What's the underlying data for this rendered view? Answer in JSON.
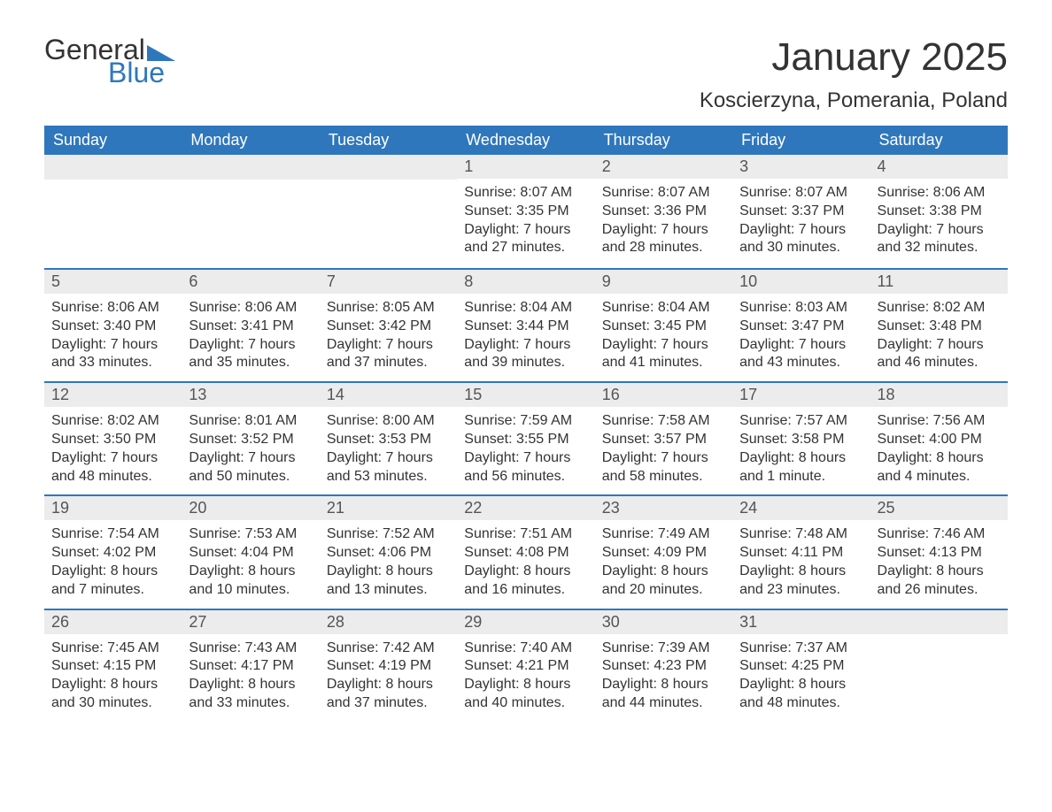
{
  "logo": {
    "word1": "General",
    "word2": "Blue"
  },
  "title": "January 2025",
  "location": "Koscierzyna, Pomerania, Poland",
  "colors": {
    "brand_blue": "#2f77bc",
    "header_bg": "#2f77bc",
    "header_text": "#ffffff",
    "daynum_bg": "#ececec",
    "text": "#333333",
    "page_bg": "#ffffff"
  },
  "layout": {
    "columns": 7,
    "rows": 5,
    "title_fontsize": 44,
    "location_fontsize": 24,
    "dayhead_fontsize": 18,
    "body_fontsize": 16,
    "first_day_column": 3,
    "last_day": 31
  },
  "day_names": [
    "Sunday",
    "Monday",
    "Tuesday",
    "Wednesday",
    "Thursday",
    "Friday",
    "Saturday"
  ],
  "days": [
    {
      "n": 1,
      "sunrise": "8:07 AM",
      "sunset": "3:35 PM",
      "daylight": "7 hours and 27 minutes."
    },
    {
      "n": 2,
      "sunrise": "8:07 AM",
      "sunset": "3:36 PM",
      "daylight": "7 hours and 28 minutes."
    },
    {
      "n": 3,
      "sunrise": "8:07 AM",
      "sunset": "3:37 PM",
      "daylight": "7 hours and 30 minutes."
    },
    {
      "n": 4,
      "sunrise": "8:06 AM",
      "sunset": "3:38 PM",
      "daylight": "7 hours and 32 minutes."
    },
    {
      "n": 5,
      "sunrise": "8:06 AM",
      "sunset": "3:40 PM",
      "daylight": "7 hours and 33 minutes."
    },
    {
      "n": 6,
      "sunrise": "8:06 AM",
      "sunset": "3:41 PM",
      "daylight": "7 hours and 35 minutes."
    },
    {
      "n": 7,
      "sunrise": "8:05 AM",
      "sunset": "3:42 PM",
      "daylight": "7 hours and 37 minutes."
    },
    {
      "n": 8,
      "sunrise": "8:04 AM",
      "sunset": "3:44 PM",
      "daylight": "7 hours and 39 minutes."
    },
    {
      "n": 9,
      "sunrise": "8:04 AM",
      "sunset": "3:45 PM",
      "daylight": "7 hours and 41 minutes."
    },
    {
      "n": 10,
      "sunrise": "8:03 AM",
      "sunset": "3:47 PM",
      "daylight": "7 hours and 43 minutes."
    },
    {
      "n": 11,
      "sunrise": "8:02 AM",
      "sunset": "3:48 PM",
      "daylight": "7 hours and 46 minutes."
    },
    {
      "n": 12,
      "sunrise": "8:02 AM",
      "sunset": "3:50 PM",
      "daylight": "7 hours and 48 minutes."
    },
    {
      "n": 13,
      "sunrise": "8:01 AM",
      "sunset": "3:52 PM",
      "daylight": "7 hours and 50 minutes."
    },
    {
      "n": 14,
      "sunrise": "8:00 AM",
      "sunset": "3:53 PM",
      "daylight": "7 hours and 53 minutes."
    },
    {
      "n": 15,
      "sunrise": "7:59 AM",
      "sunset": "3:55 PM",
      "daylight": "7 hours and 56 minutes."
    },
    {
      "n": 16,
      "sunrise": "7:58 AM",
      "sunset": "3:57 PM",
      "daylight": "7 hours and 58 minutes."
    },
    {
      "n": 17,
      "sunrise": "7:57 AM",
      "sunset": "3:58 PM",
      "daylight": "8 hours and 1 minute."
    },
    {
      "n": 18,
      "sunrise": "7:56 AM",
      "sunset": "4:00 PM",
      "daylight": "8 hours and 4 minutes."
    },
    {
      "n": 19,
      "sunrise": "7:54 AM",
      "sunset": "4:02 PM",
      "daylight": "8 hours and 7 minutes."
    },
    {
      "n": 20,
      "sunrise": "7:53 AM",
      "sunset": "4:04 PM",
      "daylight": "8 hours and 10 minutes."
    },
    {
      "n": 21,
      "sunrise": "7:52 AM",
      "sunset": "4:06 PM",
      "daylight": "8 hours and 13 minutes."
    },
    {
      "n": 22,
      "sunrise": "7:51 AM",
      "sunset": "4:08 PM",
      "daylight": "8 hours and 16 minutes."
    },
    {
      "n": 23,
      "sunrise": "7:49 AM",
      "sunset": "4:09 PM",
      "daylight": "8 hours and 20 minutes."
    },
    {
      "n": 24,
      "sunrise": "7:48 AM",
      "sunset": "4:11 PM",
      "daylight": "8 hours and 23 minutes."
    },
    {
      "n": 25,
      "sunrise": "7:46 AM",
      "sunset": "4:13 PM",
      "daylight": "8 hours and 26 minutes."
    },
    {
      "n": 26,
      "sunrise": "7:45 AM",
      "sunset": "4:15 PM",
      "daylight": "8 hours and 30 minutes."
    },
    {
      "n": 27,
      "sunrise": "7:43 AM",
      "sunset": "4:17 PM",
      "daylight": "8 hours and 33 minutes."
    },
    {
      "n": 28,
      "sunrise": "7:42 AM",
      "sunset": "4:19 PM",
      "daylight": "8 hours and 37 minutes."
    },
    {
      "n": 29,
      "sunrise": "7:40 AM",
      "sunset": "4:21 PM",
      "daylight": "8 hours and 40 minutes."
    },
    {
      "n": 30,
      "sunrise": "7:39 AM",
      "sunset": "4:23 PM",
      "daylight": "8 hours and 44 minutes."
    },
    {
      "n": 31,
      "sunrise": "7:37 AM",
      "sunset": "4:25 PM",
      "daylight": "8 hours and 48 minutes."
    }
  ],
  "labels": {
    "sunrise": "Sunrise: ",
    "sunset": "Sunset: ",
    "daylight": "Daylight: "
  }
}
